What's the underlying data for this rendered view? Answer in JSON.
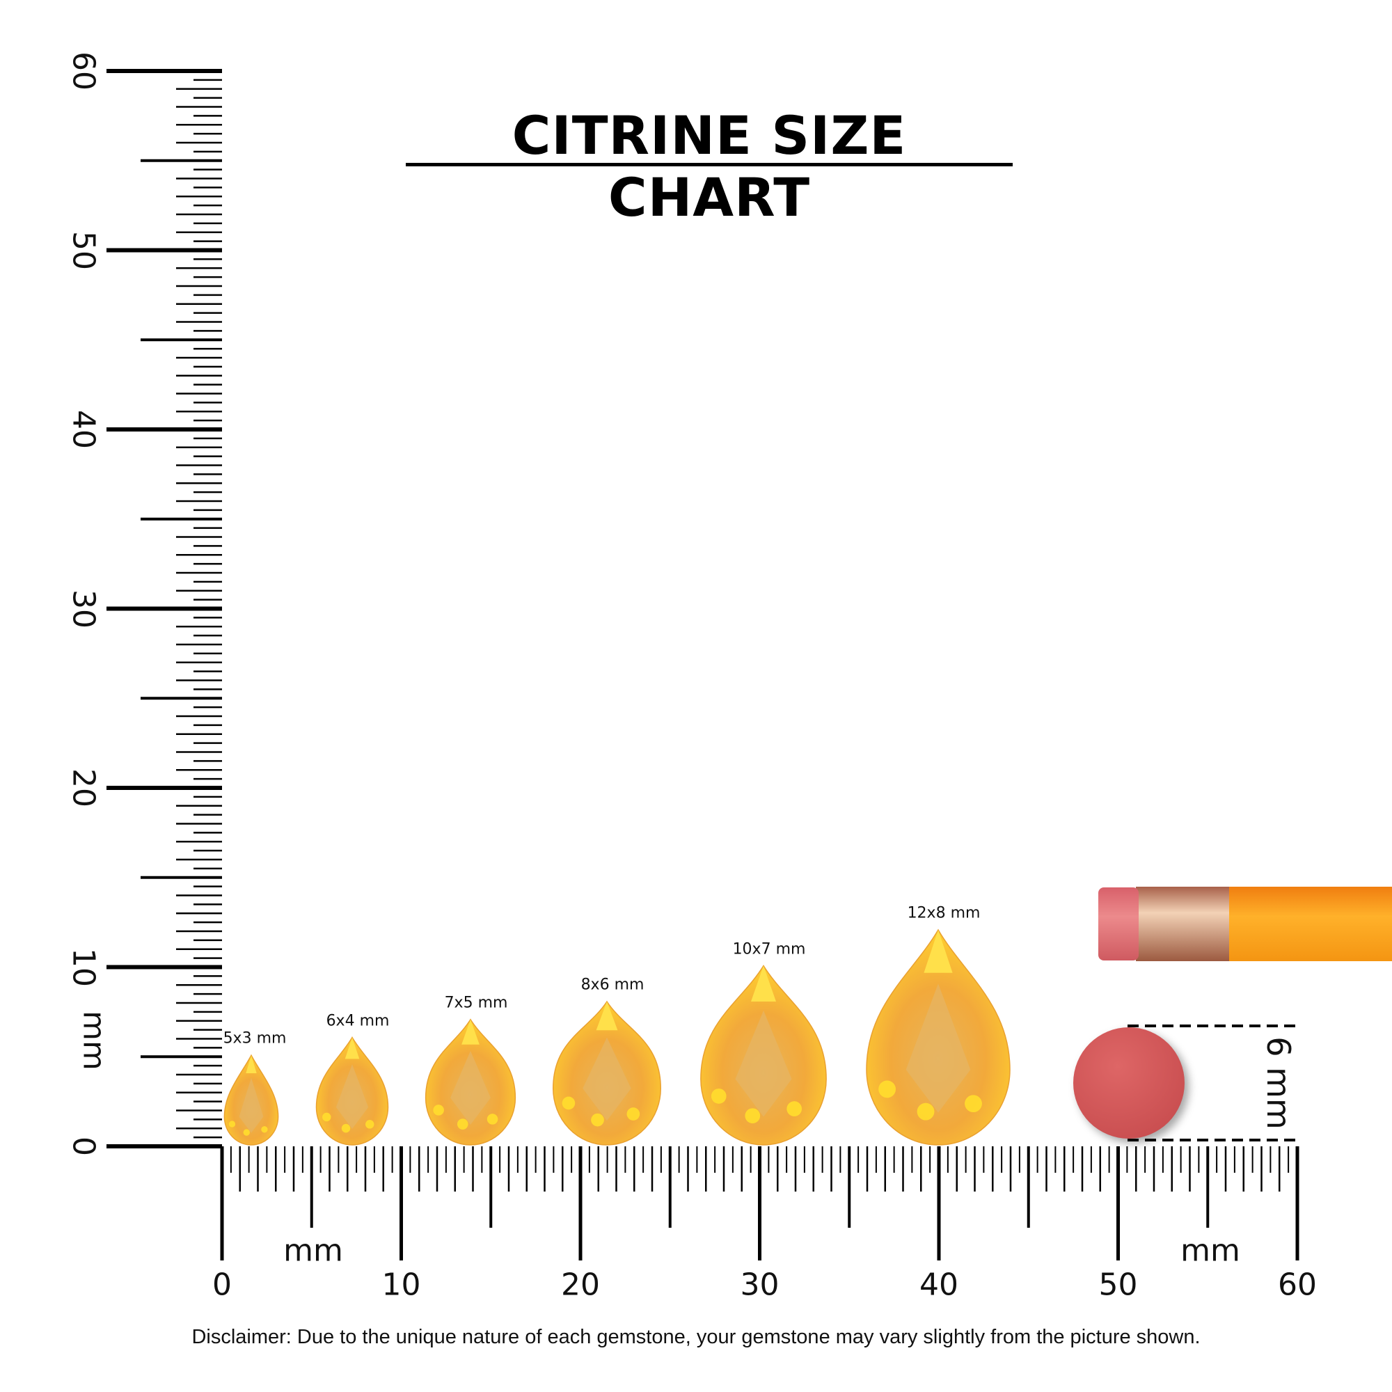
{
  "title": "CITRINE SIZE CHART",
  "disclaimer": "Disclaimer: Due to the unique nature of each gemstone, your gemstone may vary slightly from the picture shown.",
  "vertical_ruler": {
    "unit": "mm",
    "ticks": [
      "0",
      "10",
      "20",
      "30",
      "40",
      "50",
      "60"
    ]
  },
  "horizontal_ruler": {
    "unit": "mm",
    "unit_right": "mm",
    "ticks": [
      "0",
      "10",
      "20",
      "30",
      "40",
      "50",
      "60"
    ]
  },
  "gems": [
    {
      "label": "5x3 mm",
      "length": 5,
      "width": 3
    },
    {
      "label": "6x4 mm",
      "length": 6,
      "width": 4
    },
    {
      "label": "7x5 mm",
      "length": 7,
      "width": 5
    },
    {
      "label": "8x6 mm",
      "length": 8,
      "width": 6
    },
    {
      "label": "10x7 mm",
      "length": 10,
      "width": 7
    },
    {
      "label": "12x8 mm",
      "length": 12,
      "width": 8
    }
  ],
  "reference": {
    "label": "6 mm",
    "object": "pencil eraser",
    "diameter": 6
  },
  "colors": {
    "gem": "#f2a93b",
    "gem_light": "#ffd84a",
    "eraser": "#d45a5a",
    "pencil": "#f7a21b",
    "ferrule": "#d9a07a"
  }
}
